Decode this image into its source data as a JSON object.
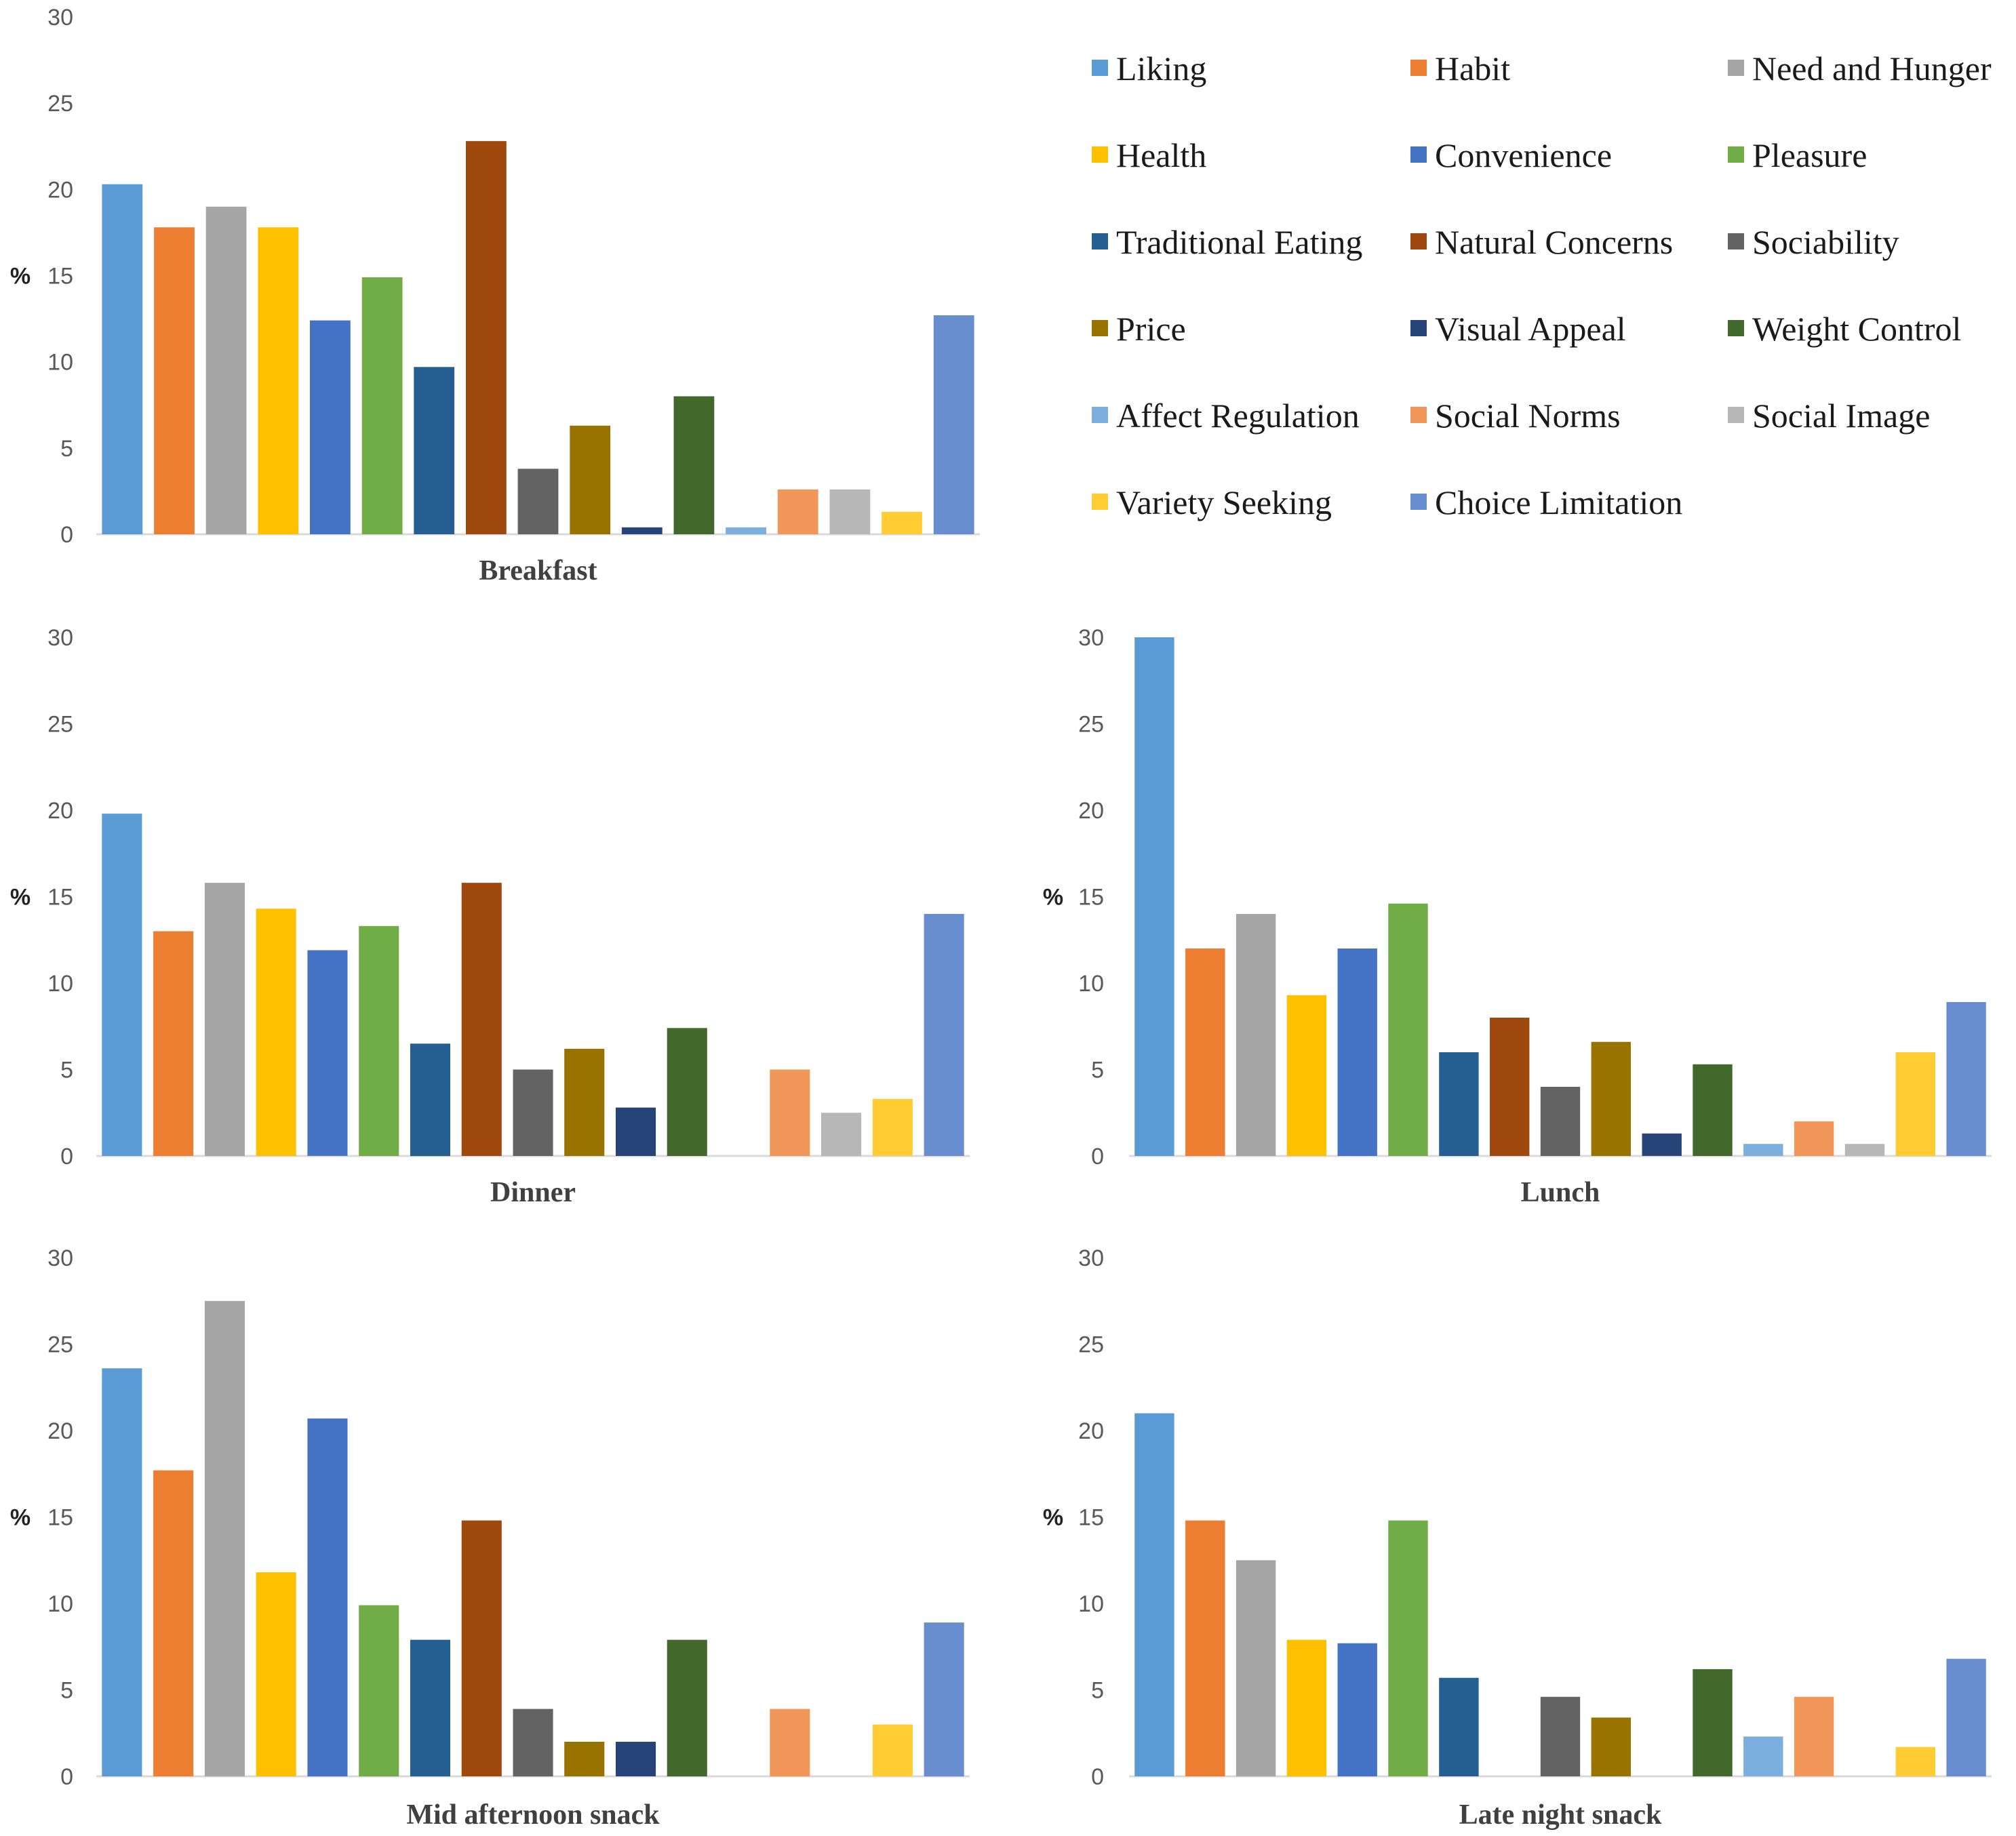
{
  "colors": {
    "Liking": "#5b9bd5",
    "Habit": "#ed7d31",
    "Need and Hunger": "#a5a5a5",
    "Health": "#ffc000",
    "Convenience": "#4472c4",
    "Pleasure": "#70ad47",
    "Traditional Eating": "#255e91",
    "Natural Concerns": "#9e480e",
    "Sociability": "#636363",
    "Price": "#997300",
    "Visual Appeal": "#264478",
    "Weight Control": "#43682b",
    "Affect Regulation": "#7cafdd",
    "Social Norms": "#f1975a",
    "Social Image": "#b7b7b7",
    "Variety Seeking": "#ffcd33",
    "Choice Limitation": "#698ed0"
  },
  "chart_data": {
    "type": "bar",
    "ylabel": "%",
    "ylim": [
      0,
      30
    ],
    "yticks": [
      "0",
      "5",
      "10",
      "15",
      "20",
      "25",
      "30"
    ],
    "legend_position": "top-right",
    "categories": [
      "Liking",
      "Habit",
      "Need and Hunger",
      "Health",
      "Convenience",
      "Pleasure",
      "Traditional Eating",
      "Natural Concerns",
      "Sociability",
      "Price",
      "Visual Appeal",
      "Weight Control",
      "Affect Regulation",
      "Social Norms",
      "Social Image",
      "Variety Seeking",
      "Choice Limitation"
    ],
    "panels": [
      {
        "title": "Breakfast",
        "values": [
          20.3,
          17.8,
          19.0,
          17.8,
          12.4,
          14.9,
          9.7,
          22.8,
          3.8,
          6.3,
          0.4,
          8.0,
          0.4,
          2.6,
          2.6,
          1.3,
          12.7
        ]
      },
      {
        "title": "Dinner",
        "values": [
          19.8,
          13.0,
          15.8,
          14.3,
          11.9,
          13.3,
          6.5,
          15.8,
          5.0,
          6.2,
          2.8,
          7.4,
          0,
          5.0,
          2.5,
          3.3,
          14.0
        ]
      },
      {
        "title": "Lunch",
        "values": [
          30.0,
          12.0,
          14.0,
          9.3,
          12.0,
          14.6,
          6.0,
          8.0,
          4.0,
          6.6,
          1.3,
          5.3,
          0.7,
          2.0,
          0.7,
          6.0,
          8.9
        ]
      },
      {
        "title": "Mid afternoon snack",
        "values": [
          23.6,
          17.7,
          27.5,
          11.8,
          20.7,
          9.9,
          7.9,
          14.8,
          3.9,
          2.0,
          2.0,
          7.9,
          0,
          3.9,
          0,
          3.0,
          8.9
        ]
      },
      {
        "title": "Late night snack",
        "values": [
          21.0,
          14.8,
          12.5,
          7.9,
          7.7,
          14.8,
          5.7,
          0,
          4.6,
          3.4,
          0,
          6.2,
          2.3,
          4.6,
          0,
          1.7,
          6.8
        ]
      }
    ]
  }
}
